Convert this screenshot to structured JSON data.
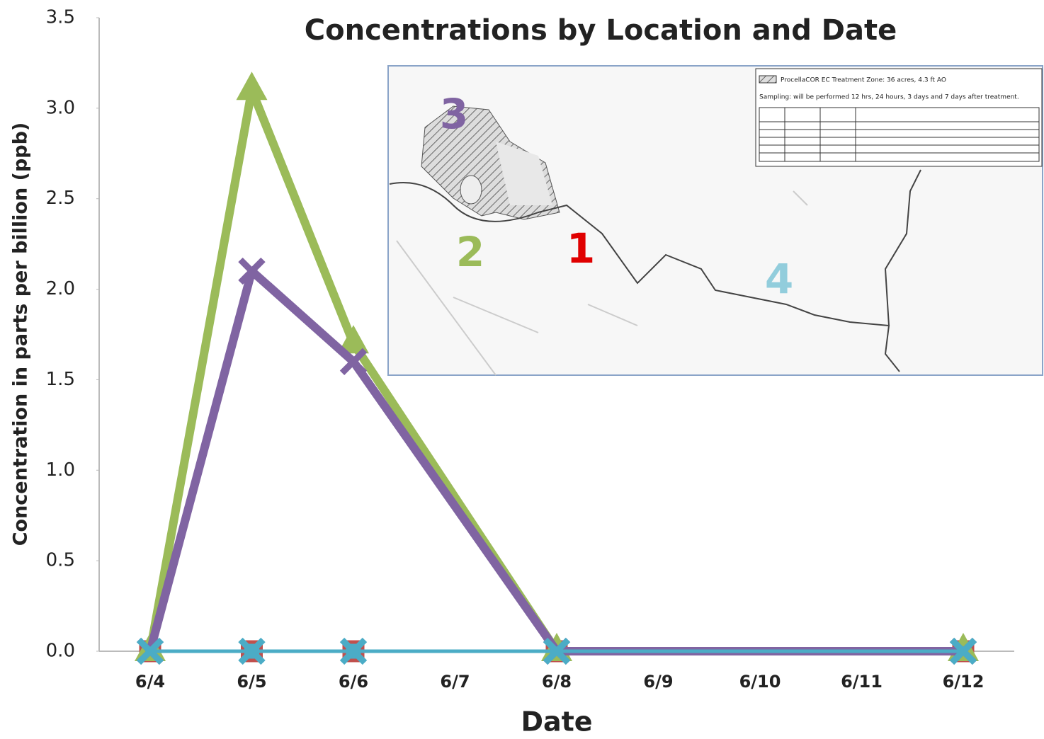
{
  "chart_data": {
    "type": "line",
    "title": "Concentrations by Location and Date",
    "x_label": "Date",
    "y_label": "Concentration in parts per billion (ppb)",
    "categories": [
      "6/4",
      "6/5",
      "6/6",
      "6/7",
      "6/8",
      "6/9",
      "6/10",
      "6/11",
      "6/12"
    ],
    "x": [
      "6/4",
      "6/5",
      "6/6",
      "6/8",
      "6/12"
    ],
    "series": [
      {
        "name": "1",
        "color": "#c0504d",
        "marker": "square",
        "values": [
          0,
          0,
          0,
          0,
          0
        ]
      },
      {
        "name": "2",
        "color": "#9bbb59",
        "marker": "triangle",
        "values": [
          0,
          3.1,
          1.7,
          0,
          0
        ]
      },
      {
        "name": "3",
        "color": "#8064a2",
        "marker": "x",
        "values": [
          0,
          2.1,
          1.6,
          0,
          0
        ]
      },
      {
        "name": "4",
        "color": "#4bacc6",
        "marker": "x",
        "values": [
          0,
          0,
          0,
          0,
          0
        ]
      }
    ],
    "ylim": [
      0,
      3.5
    ],
    "yticks": [
      {
        "value": 0,
        "label": "0.0"
      },
      0.5,
      {
        "value": 1,
        "label": "1.0"
      },
      1.5,
      {
        "value": 2,
        "label": "2.0"
      },
      2.5,
      {
        "value": 3,
        "label": "3.0"
      },
      3.5
    ],
    "grid": false,
    "map_notes": [
      "ProcellaCOR EC Treatment Zone: 36 acres, 4.3 ft AO",
      "Sampling: will be performed 12 hrs, 24 hours, 3 days and 7 days after treatment."
    ]
  }
}
